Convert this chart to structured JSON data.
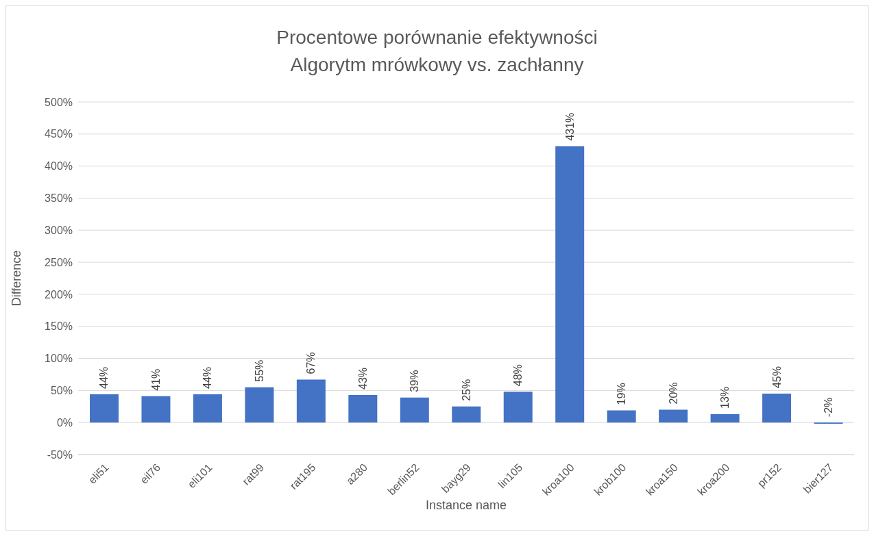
{
  "chart_data": {
    "type": "bar",
    "title": "Procentowe porównanie efektywności",
    "subtitle": "Algorytm mrówkowy vs. zachłanny",
    "xlabel": "Instance name",
    "ylabel": "Difference",
    "categories": [
      "eli51",
      "eil76",
      "eli101",
      "rat99",
      "rat195",
      "a280",
      "berlin52",
      "bayg29",
      "lin105",
      "kroa100",
      "krob100",
      "kroa150",
      "kroa200",
      "pr152",
      "bier127"
    ],
    "values": [
      44,
      41,
      44,
      55,
      67,
      43,
      39,
      25,
      48,
      431,
      19,
      20,
      13,
      45,
      -2
    ],
    "value_labels": [
      "44%",
      "41%",
      "44%",
      "55%",
      "67%",
      "43%",
      "39%",
      "25%",
      "48%",
      "431%",
      "19%",
      "20%",
      "13%",
      "45%",
      "-2%"
    ],
    "color": "#4472c4",
    "ylim": [
      -50,
      500
    ],
    "yticks": [
      {
        "value": -50,
        "label": "-50%"
      },
      {
        "value": 0,
        "label": "0%"
      },
      {
        "value": 50,
        "label": "50%"
      },
      {
        "value": 100,
        "label": "100%"
      },
      {
        "value": 150,
        "label": "150%"
      },
      {
        "value": 200,
        "label": "200%"
      },
      {
        "value": 250,
        "label": "250%"
      },
      {
        "value": 300,
        "label": "300%"
      },
      {
        "value": 350,
        "label": "350%"
      },
      {
        "value": 400,
        "label": "400%"
      },
      {
        "value": 450,
        "label": "450%"
      },
      {
        "value": 500,
        "label": "500%"
      }
    ],
    "grid": "y"
  }
}
